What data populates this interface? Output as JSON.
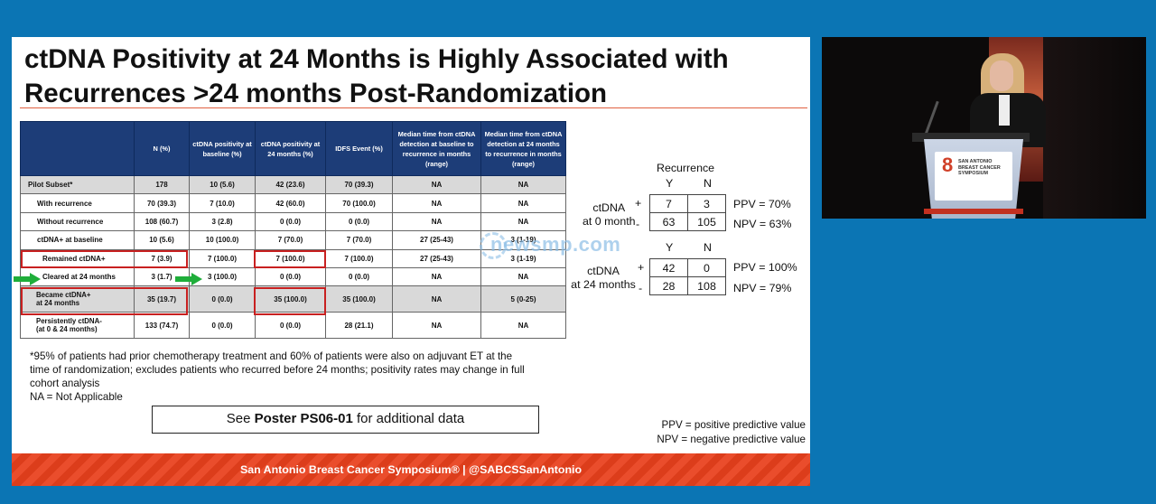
{
  "slide": {
    "title_line1": "ctDNA Positivity at 24 Months is Highly Associated with",
    "title_line2": "Recurrences >24 months Post-Randomization",
    "table": {
      "headers": [
        "",
        "N (%)",
        "ctDNA positivity at baseline (%)",
        "ctDNA positivity at 24 months (%)",
        "IDFS Event (%)",
        "Median time from ctDNA detection at baseline to recurrence in months (range)",
        "Median time from ctDNA detection at 24 months to recurrence in months (range)"
      ],
      "rows": [
        {
          "label": "Pilot Subset*",
          "cells": [
            "178",
            "10 (5.6)",
            "42 (23.6)",
            "70 (39.3)",
            "NA",
            "NA"
          ]
        },
        {
          "label": "With recurrence",
          "cells": [
            "70 (39.3)",
            "7 (10.0)",
            "42 (60.0)",
            "70 (100.0)",
            "NA",
            "NA"
          ]
        },
        {
          "label": "Without recurrence",
          "cells": [
            "108 (60.7)",
            "3 (2.8)",
            "0 (0.0)",
            "0 (0.0)",
            "NA",
            "NA"
          ]
        },
        {
          "label": "ctDNA+ at baseline",
          "cells": [
            "10 (5.6)",
            "10 (100.0)",
            "7 (70.0)",
            "7 (70.0)",
            "27 (25-43)",
            "3 (1-19)"
          ]
        },
        {
          "label": "Remained ctDNA+",
          "cells": [
            "7 (3.9)",
            "7 (100.0)",
            "7 (100.0)",
            "7 (100.0)",
            "27 (25-43)",
            "3 (1-19)"
          ]
        },
        {
          "label": "Cleared at 24 months",
          "cells": [
            "3 (1.7)",
            "3 (100.0)",
            "0 (0.0)",
            "0 (0.0)",
            "NA",
            "NA"
          ]
        },
        {
          "label_line1": "Became ctDNA+",
          "label_line2": "at 24 months",
          "cells": [
            "35 (19.7)",
            "0 (0.0)",
            "35 (100.0)",
            "35 (100.0)",
            "NA",
            "5 (0-25)"
          ]
        },
        {
          "label_line1": "Persistently ctDNA-",
          "label_line2": "(at 0 & 24 months)",
          "cells": [
            "133 (74.7)",
            "0 (0.0)",
            "0 (0.0)",
            "28 (21.1)",
            "NA",
            "NA"
          ]
        }
      ]
    },
    "footnote_line1": "*95% of patients had prior chemotherapy treatment and 60% of patients were also on adjuvant ET at the",
    "footnote_line2": "time of randomization; excludes patients who recurred before 24 months; positivity rates may change in full",
    "footnote_line3": "cohort analysis",
    "footnote_line4": "NA = Not Applicable",
    "poster_prefix": "See ",
    "poster_bold": "Poster PS06-01",
    "poster_suffix": " for additional data",
    "ppv_def": "PPV = positive predictive value",
    "npv_def": "NPV = negative predictive value",
    "footer": "San Antonio Breast Cancer Symposium®  |  @SABCSSanAntonio",
    "side": {
      "recurrence_header": "Recurrence",
      "y_label": "Y",
      "n_label": "N",
      "baseline_label_1": "ctDNA",
      "baseline_label_2": "at 0 month",
      "baseline_plus": "+",
      "baseline_minus": "-",
      "baseline_cells": [
        "7",
        "3",
        "63",
        "105"
      ],
      "baseline_ppv": "PPV = 70%",
      "baseline_npv": "NPV = 63%",
      "m24_label_1": "ctDNA",
      "m24_label_2": "at 24 months",
      "m24_plus": "+",
      "m24_minus": "-",
      "m24_cells": [
        "42",
        "0",
        "28",
        "108"
      ],
      "m24_ppv": "PPV = 100%",
      "m24_npv": "NPV = 79%"
    },
    "watermark": "newsmp.com"
  },
  "video": {
    "podium_num": "8",
    "podium_text": "SAN ANTONIO BREAST CANCER SYMPOSIUM"
  },
  "colors": {
    "background": "#0b75b4",
    "table_header": "#1d3d78",
    "footer_bar": "#e8401c",
    "highlight_box": "#c82020",
    "arrow": "#1fae3a"
  }
}
